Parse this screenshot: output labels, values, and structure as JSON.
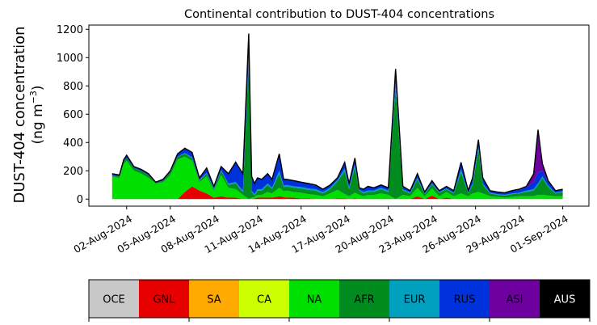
{
  "chart_data": {
    "type": "area",
    "title": "Continental contribution to DUST-404 concentrations",
    "ylabel_line1": "DUST-404 concentration",
    "ylabel_line2_prefix": "(ng m",
    "ylabel_line2_sup": "−3",
    "ylabel_line2_suffix": ")",
    "xlabel": "",
    "ylim": [
      -50,
      1230
    ],
    "yticks": [
      0,
      200,
      400,
      600,
      800,
      1000,
      1200
    ],
    "xlim_days": [
      -1.6,
      32.8
    ],
    "xticks": [
      {
        "day": 1,
        "label": "02-Aug-2024"
      },
      {
        "day": 4,
        "label": "05-Aug-2024"
      },
      {
        "day": 7,
        "label": "08-Aug-2024"
      },
      {
        "day": 10,
        "label": "11-Aug-2024"
      },
      {
        "day": 13,
        "label": "14-Aug-2024"
      },
      {
        "day": 16,
        "label": "17-Aug-2024"
      },
      {
        "day": 19,
        "label": "20-Aug-2024"
      },
      {
        "day": 22,
        "label": "23-Aug-2024"
      },
      {
        "day": 25,
        "label": "26-Aug-2024"
      },
      {
        "day": 28,
        "label": "29-Aug-2024"
      },
      {
        "day": 31,
        "label": "01-Sep-2024"
      }
    ],
    "series_order": [
      "GNL",
      "NA",
      "AFR",
      "EUR",
      "RUS",
      "ASI"
    ],
    "colors": {
      "OCE": "#c8c8c8",
      "GNL": "#e60000",
      "SA": "#ffaa00",
      "CA": "#ccff00",
      "NA": "#00e000",
      "AFR": "#008c1e",
      "EUR": "#00a0be",
      "RUS": "#0032dc",
      "ASI": "#6e00a0",
      "AUS": "#000000"
    },
    "days": [
      0.0,
      0.5,
      0.8,
      1.0,
      1.5,
      2.0,
      2.5,
      3.0,
      3.5,
      4.0,
      4.5,
      5.0,
      5.5,
      6.0,
      6.5,
      7.0,
      7.5,
      8.0,
      8.5,
      9.0,
      9.4,
      9.6,
      9.8,
      10.0,
      10.3,
      10.7,
      11.0,
      11.5,
      11.8,
      12.0,
      12.5,
      13.0,
      13.5,
      14.0,
      14.5,
      15.0,
      15.5,
      16.0,
      16.3,
      16.7,
      17.0,
      17.3,
      17.6,
      18.0,
      18.5,
      19.0,
      19.5,
      20.0,
      20.5,
      21.0,
      21.5,
      22.0,
      22.5,
      23.0,
      23.5,
      24.0,
      24.5,
      24.8,
      25.2,
      25.5,
      26.0,
      26.5,
      27.0,
      27.5,
      28.0,
      28.5,
      29.0,
      29.3,
      29.6,
      30.0,
      30.5,
      31.0
    ],
    "totals": [
      180,
      170,
      280,
      310,
      230,
      210,
      180,
      120,
      140,
      200,
      320,
      360,
      330,
      150,
      220,
      90,
      230,
      180,
      260,
      180,
      1170,
      160,
      110,
      150,
      140,
      180,
      140,
      320,
      140,
      140,
      130,
      120,
      110,
      100,
      70,
      100,
      150,
      260,
      110,
      290,
      80,
      70,
      90,
      80,
      100,
      80,
      920,
      90,
      60,
      180,
      50,
      130,
      60,
      90,
      60,
      260,
      60,
      150,
      420,
      150,
      60,
      50,
      45,
      60,
      70,
      90,
      180,
      490,
      250,
      130,
      60,
      70
    ],
    "values": {
      "GNL": [
        0,
        0,
        0,
        0,
        0,
        0,
        0,
        0,
        0,
        0,
        0,
        50,
        90,
        60,
        40,
        10,
        20,
        10,
        10,
        0,
        0,
        0,
        5,
        10,
        10,
        10,
        10,
        20,
        15,
        10,
        10,
        5,
        5,
        0,
        0,
        0,
        5,
        5,
        0,
        5,
        0,
        0,
        0,
        0,
        0,
        0,
        0,
        0,
        0,
        20,
        0,
        25,
        0,
        10,
        0,
        0,
        0,
        0,
        0,
        0,
        0,
        0,
        0,
        0,
        0,
        0,
        0,
        0,
        0,
        0,
        0,
        0
      ],
      "NA": [
        160,
        150,
        250,
        270,
        200,
        180,
        150,
        110,
        120,
        170,
        280,
        250,
        180,
        60,
        120,
        50,
        150,
        70,
        60,
        30,
        0,
        10,
        10,
        20,
        20,
        40,
        30,
        60,
        40,
        50,
        40,
        40,
        30,
        30,
        20,
        40,
        60,
        30,
        20,
        40,
        30,
        20,
        30,
        30,
        40,
        30,
        0,
        30,
        20,
        60,
        20,
        50,
        20,
        40,
        20,
        40,
        20,
        40,
        50,
        40,
        20,
        15,
        10,
        15,
        20,
        20,
        20,
        30,
        30,
        25,
        20,
        20
      ],
      "AFR": [
        10,
        10,
        20,
        20,
        20,
        20,
        20,
        5,
        10,
        20,
        20,
        20,
        20,
        10,
        20,
        10,
        30,
        20,
        40,
        20,
        980,
        40,
        10,
        30,
        30,
        50,
        30,
        100,
        30,
        30,
        30,
        30,
        30,
        30,
        20,
        30,
        60,
        160,
        50,
        180,
        30,
        20,
        20,
        20,
        30,
        20,
        780,
        30,
        20,
        60,
        15,
        30,
        25,
        20,
        20,
        150,
        20,
        60,
        300,
        60,
        20,
        15,
        15,
        20,
        20,
        30,
        40,
        70,
        120,
        60,
        20,
        30
      ],
      "EUR": [
        0,
        0,
        0,
        0,
        0,
        0,
        0,
        0,
        0,
        0,
        0,
        5,
        5,
        5,
        5,
        5,
        5,
        10,
        10,
        10,
        20,
        10,
        10,
        10,
        10,
        10,
        10,
        20,
        10,
        10,
        10,
        10,
        10,
        10,
        10,
        10,
        10,
        20,
        10,
        20,
        5,
        10,
        10,
        10,
        10,
        10,
        40,
        10,
        5,
        10,
        5,
        5,
        5,
        5,
        5,
        20,
        5,
        10,
        20,
        10,
        5,
        5,
        5,
        5,
        5,
        10,
        10,
        10,
        10,
        10,
        5,
        5
      ],
      "RUS": [
        10,
        10,
        10,
        20,
        10,
        10,
        10,
        5,
        10,
        10,
        20,
        35,
        35,
        15,
        35,
        15,
        25,
        70,
        150,
        120,
        150,
        100,
        75,
        80,
        70,
        70,
        60,
        120,
        45,
        40,
        40,
        35,
        35,
        30,
        20,
        20,
        15,
        45,
        30,
        45,
        15,
        20,
        30,
        20,
        20,
        20,
        100,
        20,
        15,
        30,
        10,
        20,
        10,
        15,
        15,
        50,
        15,
        40,
        50,
        40,
        15,
        15,
        15,
        20,
        20,
        25,
        50,
        80,
        40,
        25,
        15,
        15
      ],
      "ASI": [
        0,
        0,
        0,
        0,
        0,
        0,
        0,
        0,
        0,
        0,
        0,
        0,
        0,
        0,
        0,
        0,
        0,
        0,
        0,
        0,
        0,
        0,
        0,
        0,
        0,
        0,
        0,
        0,
        0,
        0,
        0,
        0,
        0,
        0,
        0,
        0,
        0,
        0,
        0,
        0,
        0,
        0,
        0,
        0,
        0,
        0,
        0,
        0,
        0,
        0,
        0,
        0,
        0,
        0,
        0,
        0,
        0,
        0,
        0,
        0,
        0,
        0,
        0,
        0,
        5,
        5,
        60,
        300,
        50,
        10,
        0,
        0
      ]
    },
    "legend": [
      "OCE",
      "GNL",
      "SA",
      "CA",
      "NA",
      "AFR",
      "EUR",
      "RUS",
      "ASI",
      "AUS"
    ],
    "legend_text_white": [
      "AUS"
    ]
  }
}
